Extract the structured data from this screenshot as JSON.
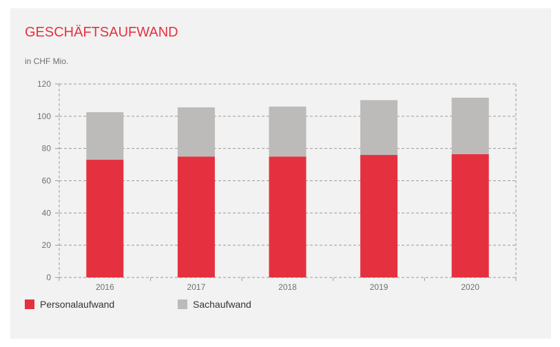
{
  "title": "GESCHÄFTSAUFWAND",
  "unit_label": "in CHF Mio.",
  "colors": {
    "personal": "#e5313f",
    "sach": "#bdbbb9",
    "grid": "#9a9a9a",
    "tick_text": "#6f6f6f"
  },
  "chart_data": {
    "type": "bar",
    "stacked": true,
    "categories": [
      "2016",
      "2017",
      "2018",
      "2019",
      "2020"
    ],
    "series": [
      {
        "name": "Personalaufwand",
        "values": [
          73,
          75,
          75,
          76,
          76.5
        ]
      },
      {
        "name": "Sachaufwand",
        "values": [
          29.5,
          30.5,
          31,
          34,
          35
        ]
      }
    ],
    "ylim": [
      0,
      120
    ],
    "yticks": [
      "0",
      "20",
      "40",
      "60",
      "80",
      "100",
      "120"
    ],
    "grid": true,
    "legend_position": "bottom-left"
  }
}
